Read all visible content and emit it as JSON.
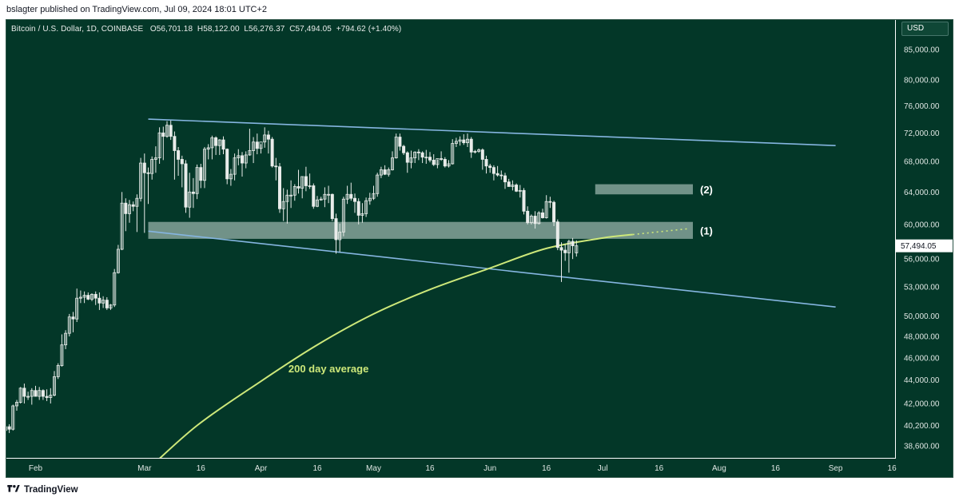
{
  "header": {
    "publisher": "bslagter published on TradingView.com, Jul 09, 2024 18:01 UTC+2"
  },
  "legend": {
    "symbol": "Bitcoin / U.S. Dollar, 1D, COINBASE",
    "open": "O56,701.18",
    "high": "H58,122.00",
    "low": "L56,276.37",
    "close": "C57,494.05",
    "change": "+794.62 (+1.40%)"
  },
  "currency_label": "USD",
  "last_price_label": "57,494.05",
  "footer": {
    "brand": "TradingView"
  },
  "colors": {
    "background": "#033728",
    "candle": "#e9ecea",
    "trendline": "#85b5e0",
    "ma200": "#cde87a",
    "zone": "#9db6ad"
  },
  "chart_data": {
    "type": "candlestick",
    "title": "Bitcoin / U.S. Dollar, 1D, COINBASE",
    "log_scale": true,
    "ylim": [
      37700,
      90000
    ],
    "y_ticks": [
      {
        "value": 85000,
        "label": "85,000.00"
      },
      {
        "value": 80000,
        "label": "80,000.00"
      },
      {
        "value": 76000,
        "label": "76,000.00"
      },
      {
        "value": 72000,
        "label": "72,000.00"
      },
      {
        "value": 68000,
        "label": "68,000.00"
      },
      {
        "value": 64000,
        "label": "64,000.00"
      },
      {
        "value": 60000,
        "label": "60,000.00"
      },
      {
        "value": 56000,
        "label": "56,000.00"
      },
      {
        "value": 53000,
        "label": "53,000.00"
      },
      {
        "value": 50000,
        "label": "50,000.00"
      },
      {
        "value": 48000,
        "label": "48,000.00"
      },
      {
        "value": 46000,
        "label": "46,000.00"
      },
      {
        "value": 44000,
        "label": "44,000.00"
      },
      {
        "value": 42000,
        "label": "42,000.00"
      },
      {
        "value": 40200,
        "label": "40,200.00"
      },
      {
        "value": 38600,
        "label": "38,600.00"
      }
    ],
    "x_ticks": [
      {
        "date": "2024-02-01",
        "label": "Feb"
      },
      {
        "date": "2024-03-01",
        "label": "Mar"
      },
      {
        "date": "2024-03-16",
        "label": "16"
      },
      {
        "date": "2024-04-01",
        "label": "Apr"
      },
      {
        "date": "2024-04-16",
        "label": "16"
      },
      {
        "date": "2024-05-01",
        "label": "May"
      },
      {
        "date": "2024-05-16",
        "label": "16"
      },
      {
        "date": "2024-06-01",
        "label": "Jun"
      },
      {
        "date": "2024-06-16",
        "label": "16"
      },
      {
        "date": "2024-07-01",
        "label": "Jul"
      },
      {
        "date": "2024-07-16",
        "label": "16"
      },
      {
        "date": "2024-08-01",
        "label": "Aug"
      },
      {
        "date": "2024-08-16",
        "label": "16"
      },
      {
        "date": "2024-09-01",
        "label": "Sep"
      },
      {
        "date": "2024-09-16",
        "label": "16"
      }
    ],
    "candles_start_date": "2024-01-24",
    "candles": [
      [
        39800,
        40300,
        39500,
        40100
      ],
      [
        40100,
        40300,
        39600,
        39900
      ],
      [
        39900,
        41900,
        39800,
        41800
      ],
      [
        41800,
        42300,
        41400,
        42100
      ],
      [
        42100,
        43400,
        42000,
        43300
      ],
      [
        43300,
        43700,
        42000,
        42600
      ],
      [
        42600,
        43000,
        42300,
        42600
      ],
      [
        42600,
        43300,
        41900,
        43100
      ],
      [
        43100,
        43500,
        42600,
        42600
      ],
      [
        42600,
        43400,
        42300,
        43100
      ],
      [
        43100,
        43200,
        42300,
        42600
      ],
      [
        42600,
        43200,
        42200,
        42500
      ],
      [
        42500,
        43300,
        42000,
        42700
      ],
      [
        42700,
        44800,
        42600,
        44300
      ],
      [
        44300,
        45500,
        44100,
        45300
      ],
      [
        45300,
        48200,
        45200,
        47200
      ],
      [
        47200,
        48600,
        46800,
        48300
      ],
      [
        48300,
        50200,
        48000,
        49900
      ],
      [
        49900,
        50400,
        48400,
        49700
      ],
      [
        49700,
        52800,
        49400,
        51800
      ],
      [
        51800,
        52600,
        51300,
        51900
      ],
      [
        51900,
        52500,
        51300,
        52100
      ],
      [
        52100,
        52400,
        51600,
        51700
      ],
      [
        51700,
        52300,
        51500,
        52200
      ],
      [
        52200,
        52500,
        51100,
        51800
      ],
      [
        51800,
        52400,
        50600,
        51300
      ],
      [
        51300,
        52000,
        50800,
        51600
      ],
      [
        51600,
        51900,
        50600,
        50800
      ],
      [
        50800,
        51200,
        50600,
        51100
      ],
      [
        51100,
        54900,
        50900,
        54500
      ],
      [
        54500,
        57600,
        54400,
        57100
      ],
      [
        57100,
        64000,
        57000,
        62600
      ],
      [
        62600,
        63200,
        59200,
        61300
      ],
      [
        61300,
        63000,
        60200,
        62400
      ],
      [
        62400,
        62800,
        61600,
        62200
      ],
      [
        62200,
        63700,
        59100,
        63200
      ],
      [
        63200,
        68500,
        62800,
        67800
      ],
      [
        67800,
        69100,
        59000,
        66500
      ],
      [
        66500,
        67200,
        62500,
        66400
      ],
      [
        66400,
        68700,
        65600,
        68300
      ],
      [
        68300,
        70100,
        66500,
        68500
      ],
      [
        68500,
        72800,
        67700,
        72000
      ],
      [
        72000,
        72900,
        68200,
        71500
      ],
      [
        71500,
        73700,
        71300,
        73100
      ],
      [
        73100,
        73800,
        71000,
        71500
      ],
      [
        71500,
        72200,
        65600,
        69500
      ],
      [
        69500,
        70000,
        66100,
        68300
      ],
      [
        68300,
        68800,
        64600,
        67700
      ],
      [
        67700,
        68200,
        61400,
        62100
      ],
      [
        62100,
        66500,
        60800,
        64000
      ],
      [
        64000,
        65800,
        62000,
        63800
      ],
      [
        63800,
        67600,
        63100,
        67200
      ],
      [
        67200,
        67700,
        64500,
        65500
      ],
      [
        65500,
        70000,
        64500,
        69700
      ],
      [
        69700,
        70400,
        68300,
        69900
      ],
      [
        69900,
        71600,
        68300,
        71300
      ],
      [
        71300,
        71500,
        68900,
        70200
      ],
      [
        70200,
        71100,
        68900,
        71000
      ],
      [
        71000,
        71500,
        69000,
        69700
      ],
      [
        69700,
        69800,
        65000,
        65700
      ],
      [
        65700,
        67000,
        64800,
        66300
      ],
      [
        66300,
        69100,
        65500,
        68500
      ],
      [
        68500,
        69700,
        67500,
        68800
      ],
      [
        68800,
        69300,
        66000,
        67800
      ],
      [
        67800,
        69400,
        67100,
        68900
      ],
      [
        68900,
        72600,
        68800,
        69500
      ],
      [
        69500,
        71400,
        67800,
        70700
      ],
      [
        70700,
        71900,
        69000,
        69800
      ],
      [
        69800,
        70400,
        69100,
        70700
      ],
      [
        70700,
        72800,
        69900,
        71700
      ],
      [
        71700,
        72300,
        69100,
        71100
      ],
      [
        71100,
        71400,
        67200,
        67400
      ],
      [
        67400,
        68500,
        65500,
        67300
      ],
      [
        67300,
        67800,
        61400,
        61900
      ],
      [
        61900,
        64500,
        60400,
        62800
      ],
      [
        62800,
        64300,
        60100,
        63600
      ],
      [
        63600,
        65500,
        62000,
        63600
      ],
      [
        63600,
        65000,
        62900,
        64700
      ],
      [
        64700,
        66900,
        63800,
        64500
      ],
      [
        64500,
        66000,
        63200,
        66000
      ],
      [
        66000,
        67300,
        64100,
        64800
      ],
      [
        64800,
        66400,
        64400,
        64800
      ],
      [
        64800,
        65100,
        61900,
        62200
      ],
      [
        62200,
        63500,
        62100,
        63000
      ],
      [
        63000,
        63400,
        62900,
        63100
      ],
      [
        63100,
        64600,
        62100,
        63700
      ],
      [
        63700,
        64800,
        62600,
        63700
      ],
      [
        63700,
        63800,
        60400,
        60700
      ],
      [
        60700,
        61300,
        56600,
        58200
      ],
      [
        58200,
        60100,
        56800,
        59100
      ],
      [
        59100,
        63400,
        58600,
        63100
      ],
      [
        63100,
        64800,
        62500,
        63700
      ],
      [
        63700,
        65200,
        62900,
        63200
      ],
      [
        63200,
        63800,
        61400,
        62800
      ],
      [
        62800,
        63200,
        60000,
        61100
      ],
      [
        61100,
        62600,
        60200,
        61300
      ],
      [
        61300,
        63300,
        60900,
        62900
      ],
      [
        62900,
        63900,
        62400,
        63200
      ],
      [
        63200,
        64800,
        63000,
        63800
      ],
      [
        63800,
        66500,
        63400,
        66200
      ],
      [
        66200,
        67300,
        65800,
        66900
      ],
      [
        66900,
        67500,
        66200,
        66300
      ],
      [
        66300,
        67200,
        66000,
        66900
      ],
      [
        66900,
        69400,
        66800,
        68500
      ],
      [
        68500,
        71900,
        68400,
        71400
      ],
      [
        71400,
        71900,
        69500,
        70100
      ],
      [
        70100,
        70300,
        68900,
        69200
      ],
      [
        69200,
        69400,
        66500,
        67900
      ],
      [
        67900,
        69500,
        67100,
        68500
      ],
      [
        68500,
        69400,
        67800,
        69300
      ],
      [
        69300,
        69700,
        68200,
        69200
      ],
      [
        69200,
        69400,
        67800,
        68600
      ],
      [
        68600,
        69600,
        67700,
        68600
      ],
      [
        68600,
        69300,
        67900,
        68200
      ],
      [
        68200,
        69000,
        67400,
        67600
      ],
      [
        67600,
        68300,
        67100,
        68400
      ],
      [
        68400,
        69400,
        68100,
        68300
      ],
      [
        68300,
        68600,
        67200,
        67400
      ],
      [
        67400,
        68200,
        67200,
        67700
      ],
      [
        67700,
        71100,
        67600,
        70500
      ],
      [
        70500,
        71300,
        70000,
        70800
      ],
      [
        70800,
        71500,
        70200,
        71000
      ],
      [
        71000,
        71800,
        70300,
        70600
      ],
      [
        70600,
        71900,
        70000,
        71100
      ],
      [
        71100,
        71400,
        68500,
        69300
      ],
      [
        69300,
        69600,
        69100,
        69400
      ],
      [
        69400,
        69800,
        69200,
        69600
      ],
      [
        69600,
        69800,
        66900,
        68300
      ],
      [
        68300,
        68800,
        66400,
        67400
      ],
      [
        67400,
        67700,
        66500,
        67200
      ],
      [
        67200,
        67500,
        65500,
        66400
      ],
      [
        66400,
        67400,
        66000,
        66200
      ],
      [
        66200,
        66800,
        65600,
        66100
      ],
      [
        66100,
        66500,
        64400,
        65300
      ],
      [
        65300,
        65700,
        64700,
        64700
      ],
      [
        64700,
        65500,
        64200,
        64900
      ],
      [
        64900,
        65100,
        64000,
        64100
      ],
      [
        64100,
        64900,
        63300,
        64200
      ],
      [
        64200,
        64500,
        61200,
        61600
      ],
      [
        61600,
        62200,
        60000,
        60200
      ],
      [
        60200,
        61200,
        60000,
        61000
      ],
      [
        61000,
        61600,
        59500,
        60100
      ],
      [
        60100,
        61600,
        60000,
        61400
      ],
      [
        61400,
        61900,
        60700,
        60800
      ],
      [
        60800,
        63600,
        60700,
        62800
      ],
      [
        62800,
        63400,
        62000,
        62700
      ],
      [
        62700,
        62900,
        59800,
        60300
      ],
      [
        60300,
        60600,
        57000,
        57300
      ],
      [
        57300,
        57900,
        53500,
        57000
      ],
      [
        57000,
        57700,
        55800,
        56700
      ],
      [
        56700,
        58200,
        54500,
        58000
      ],
      [
        58000,
        58400,
        56000,
        57500
      ],
      [
        56700,
        58122,
        56276,
        57494
      ]
    ],
    "ma200": [
      [
        "2024-03-01",
        36600
      ],
      [
        "2024-03-15",
        40200
      ],
      [
        "2024-04-01",
        43900
      ],
      [
        "2024-04-16",
        47200
      ],
      [
        "2024-05-01",
        50200
      ],
      [
        "2024-05-16",
        52700
      ],
      [
        "2024-06-01",
        55000
      ],
      [
        "2024-06-16",
        57200
      ],
      [
        "2024-07-01",
        58400
      ],
      [
        "2024-07-09",
        58800
      ]
    ],
    "ma200_projection": [
      [
        "2024-07-09",
        58800
      ],
      [
        "2024-07-24",
        59500
      ]
    ],
    "trendlines": [
      {
        "name": "channel-top",
        "from": [
          "2024-03-02",
          74000
        ],
        "to": [
          "2024-09-01",
          70200
        ]
      },
      {
        "name": "channel-bottom",
        "from": [
          "2024-03-02",
          59200
        ],
        "to": [
          "2024-09-01",
          50900
        ]
      }
    ],
    "zones": [
      {
        "label": "(1)",
        "from": "2024-03-02",
        "to": "2024-07-25",
        "y": [
          58300,
          60300
        ]
      },
      {
        "label": "(2)",
        "from": "2024-06-29",
        "to": "2024-07-25",
        "y": [
          63700,
          65000
        ]
      }
    ],
    "annotations": [
      {
        "text": "200 day average",
        "date": "2024-04-19",
        "value": 44700
      }
    ]
  }
}
